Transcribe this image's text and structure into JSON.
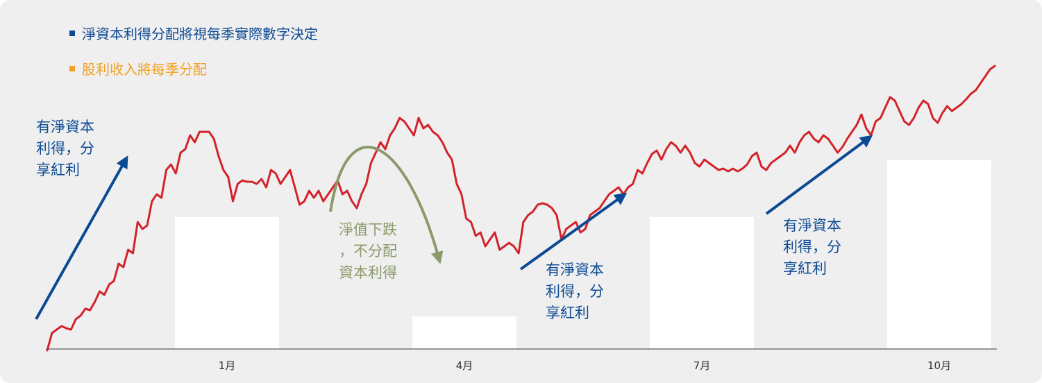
{
  "colors": {
    "background": "#f0eff0",
    "blue": "#0b4a93",
    "orange": "#f2a020",
    "red": "#d2232a",
    "green": "#8a9a6a",
    "bar": "#ffffff",
    "axis": "#777777"
  },
  "legend": {
    "items": [
      {
        "label": "淨資本利得分配將視每季實際數字決定",
        "color": "#0b4a93",
        "marker": "square"
      },
      {
        "label": "股利收入將每季分配",
        "color": "#f2a020",
        "marker": "square"
      }
    ]
  },
  "chart_data": {
    "type": "line",
    "title": "",
    "xlabel": "",
    "ylabel": "",
    "grid": false,
    "x_ticks": [
      "1月",
      "4月",
      "7月",
      "10月"
    ],
    "bars": {
      "categories": [
        "1月",
        "4月",
        "7月",
        "10月"
      ],
      "values": [
        190,
        47,
        190,
        272
      ]
    },
    "price_line": {
      "name": "",
      "values": [
        0,
        25,
        30,
        35,
        32,
        30,
        45,
        50,
        60,
        58,
        70,
        85,
        80,
        95,
        100,
        125,
        120,
        145,
        140,
        185,
        175,
        180,
        215,
        225,
        220,
        260,
        268,
        255,
        285,
        290,
        310,
        300,
        315,
        315,
        315,
        305,
        280,
        260,
        250,
        215,
        240,
        245,
        243,
        243,
        240,
        247,
        235,
        260,
        255,
        240,
        250,
        260,
        235,
        210,
        215,
        230,
        220,
        230,
        215,
        225,
        235,
        245,
        225,
        230,
        215,
        205,
        225,
        240,
        270,
        285,
        300,
        290,
        310,
        320,
        335,
        330,
        320,
        310,
        335,
        320,
        325,
        315,
        310,
        300,
        285,
        275,
        240,
        225,
        190,
        185,
        165,
        170,
        150,
        160,
        170,
        145,
        150,
        155,
        150,
        140,
        185,
        195,
        200,
        210,
        212,
        210,
        205,
        195,
        160,
        175,
        180,
        185,
        170,
        175,
        195,
        200,
        205,
        215,
        225,
        230,
        235,
        225,
        235,
        240,
        260,
        255,
        270,
        283,
        288,
        275,
        290,
        300,
        295,
        285,
        295,
        285,
        270,
        265,
        275,
        270,
        265,
        260,
        262,
        258,
        262,
        258,
        262,
        268,
        280,
        285,
        265,
        260,
        270,
        275,
        280,
        285,
        295,
        285,
        300,
        310,
        315,
        305,
        300,
        310,
        305,
        295,
        285,
        293,
        305,
        315,
        325,
        340,
        320,
        310,
        330,
        335,
        350,
        365,
        360,
        345,
        330,
        325,
        335,
        350,
        360,
        355,
        335,
        328,
        342,
        352,
        345,
        350,
        355,
        362,
        370,
        375,
        385,
        395,
        405,
        410
      ]
    }
  },
  "annotations": [
    {
      "lines": [
        "有淨資本",
        "利得，分",
        "享紅利"
      ],
      "color": "#0b4a93"
    },
    {
      "lines": [
        "淨值下跌",
        "，不分配",
        "資本利得"
      ],
      "color": "#8a9a6a"
    },
    {
      "lines": [
        "有淨資本",
        "利得，分",
        "享紅利"
      ],
      "color": "#0b4a93"
    },
    {
      "lines": [
        "有淨資本",
        "利得，分",
        "享紅利"
      ],
      "color": "#0b4a93"
    }
  ],
  "arrows": [
    {
      "name": "upward-trend-arrow-1",
      "color": "#0b4a93",
      "kind": "straight"
    },
    {
      "name": "downward-curved-arrow",
      "color": "#8a9a6a",
      "kind": "curved"
    },
    {
      "name": "upward-trend-arrow-2",
      "color": "#0b4a93",
      "kind": "straight"
    },
    {
      "name": "upward-trend-arrow-3",
      "color": "#0b4a93",
      "kind": "straight"
    }
  ]
}
